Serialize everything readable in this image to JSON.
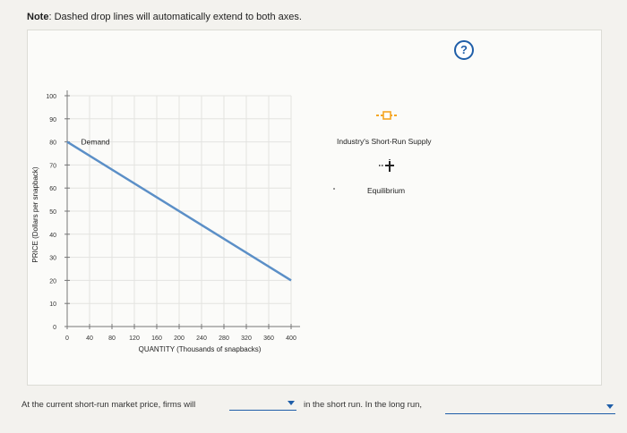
{
  "note": {
    "prefix": "Note",
    "text": ": Dashed drop lines will automatically extend to both axes."
  },
  "help_icon": {
    "glyph": "?",
    "name": "help-icon",
    "color": "#1f5ea8"
  },
  "legend": {
    "supply": {
      "label": "Industry's Short-Run Supply",
      "icon": "square-marker-line-icon",
      "color": "#f5a623"
    },
    "equilibrium": {
      "label": "Equilibrium",
      "icon": "cross-marker-icon",
      "color": "#222222"
    }
  },
  "question": {
    "part1": "At the current short-run market price, firms will",
    "dropdown1_value": "",
    "part2": "in the short run. In the long run,",
    "dropdown2_value": ""
  },
  "chart_data": {
    "type": "line",
    "xlabel": "QUANTITY (Thousands of snapbacks)",
    "ylabel": "PRICE (Dollars per snapback)",
    "xlim": [
      0,
      400
    ],
    "ylim": [
      0,
      100
    ],
    "xticks": [
      0,
      40,
      80,
      120,
      160,
      200,
      240,
      280,
      320,
      360,
      400
    ],
    "yticks": [
      0,
      10,
      20,
      30,
      40,
      50,
      60,
      70,
      80,
      90,
      100
    ],
    "grid": true,
    "series": [
      {
        "name": "Demand",
        "color": "#5b8fc7",
        "points": [
          [
            0,
            80
          ],
          [
            400,
            20
          ]
        ]
      }
    ],
    "annotations": [
      {
        "text": "Demand",
        "x": 20,
        "y": 80
      }
    ]
  }
}
